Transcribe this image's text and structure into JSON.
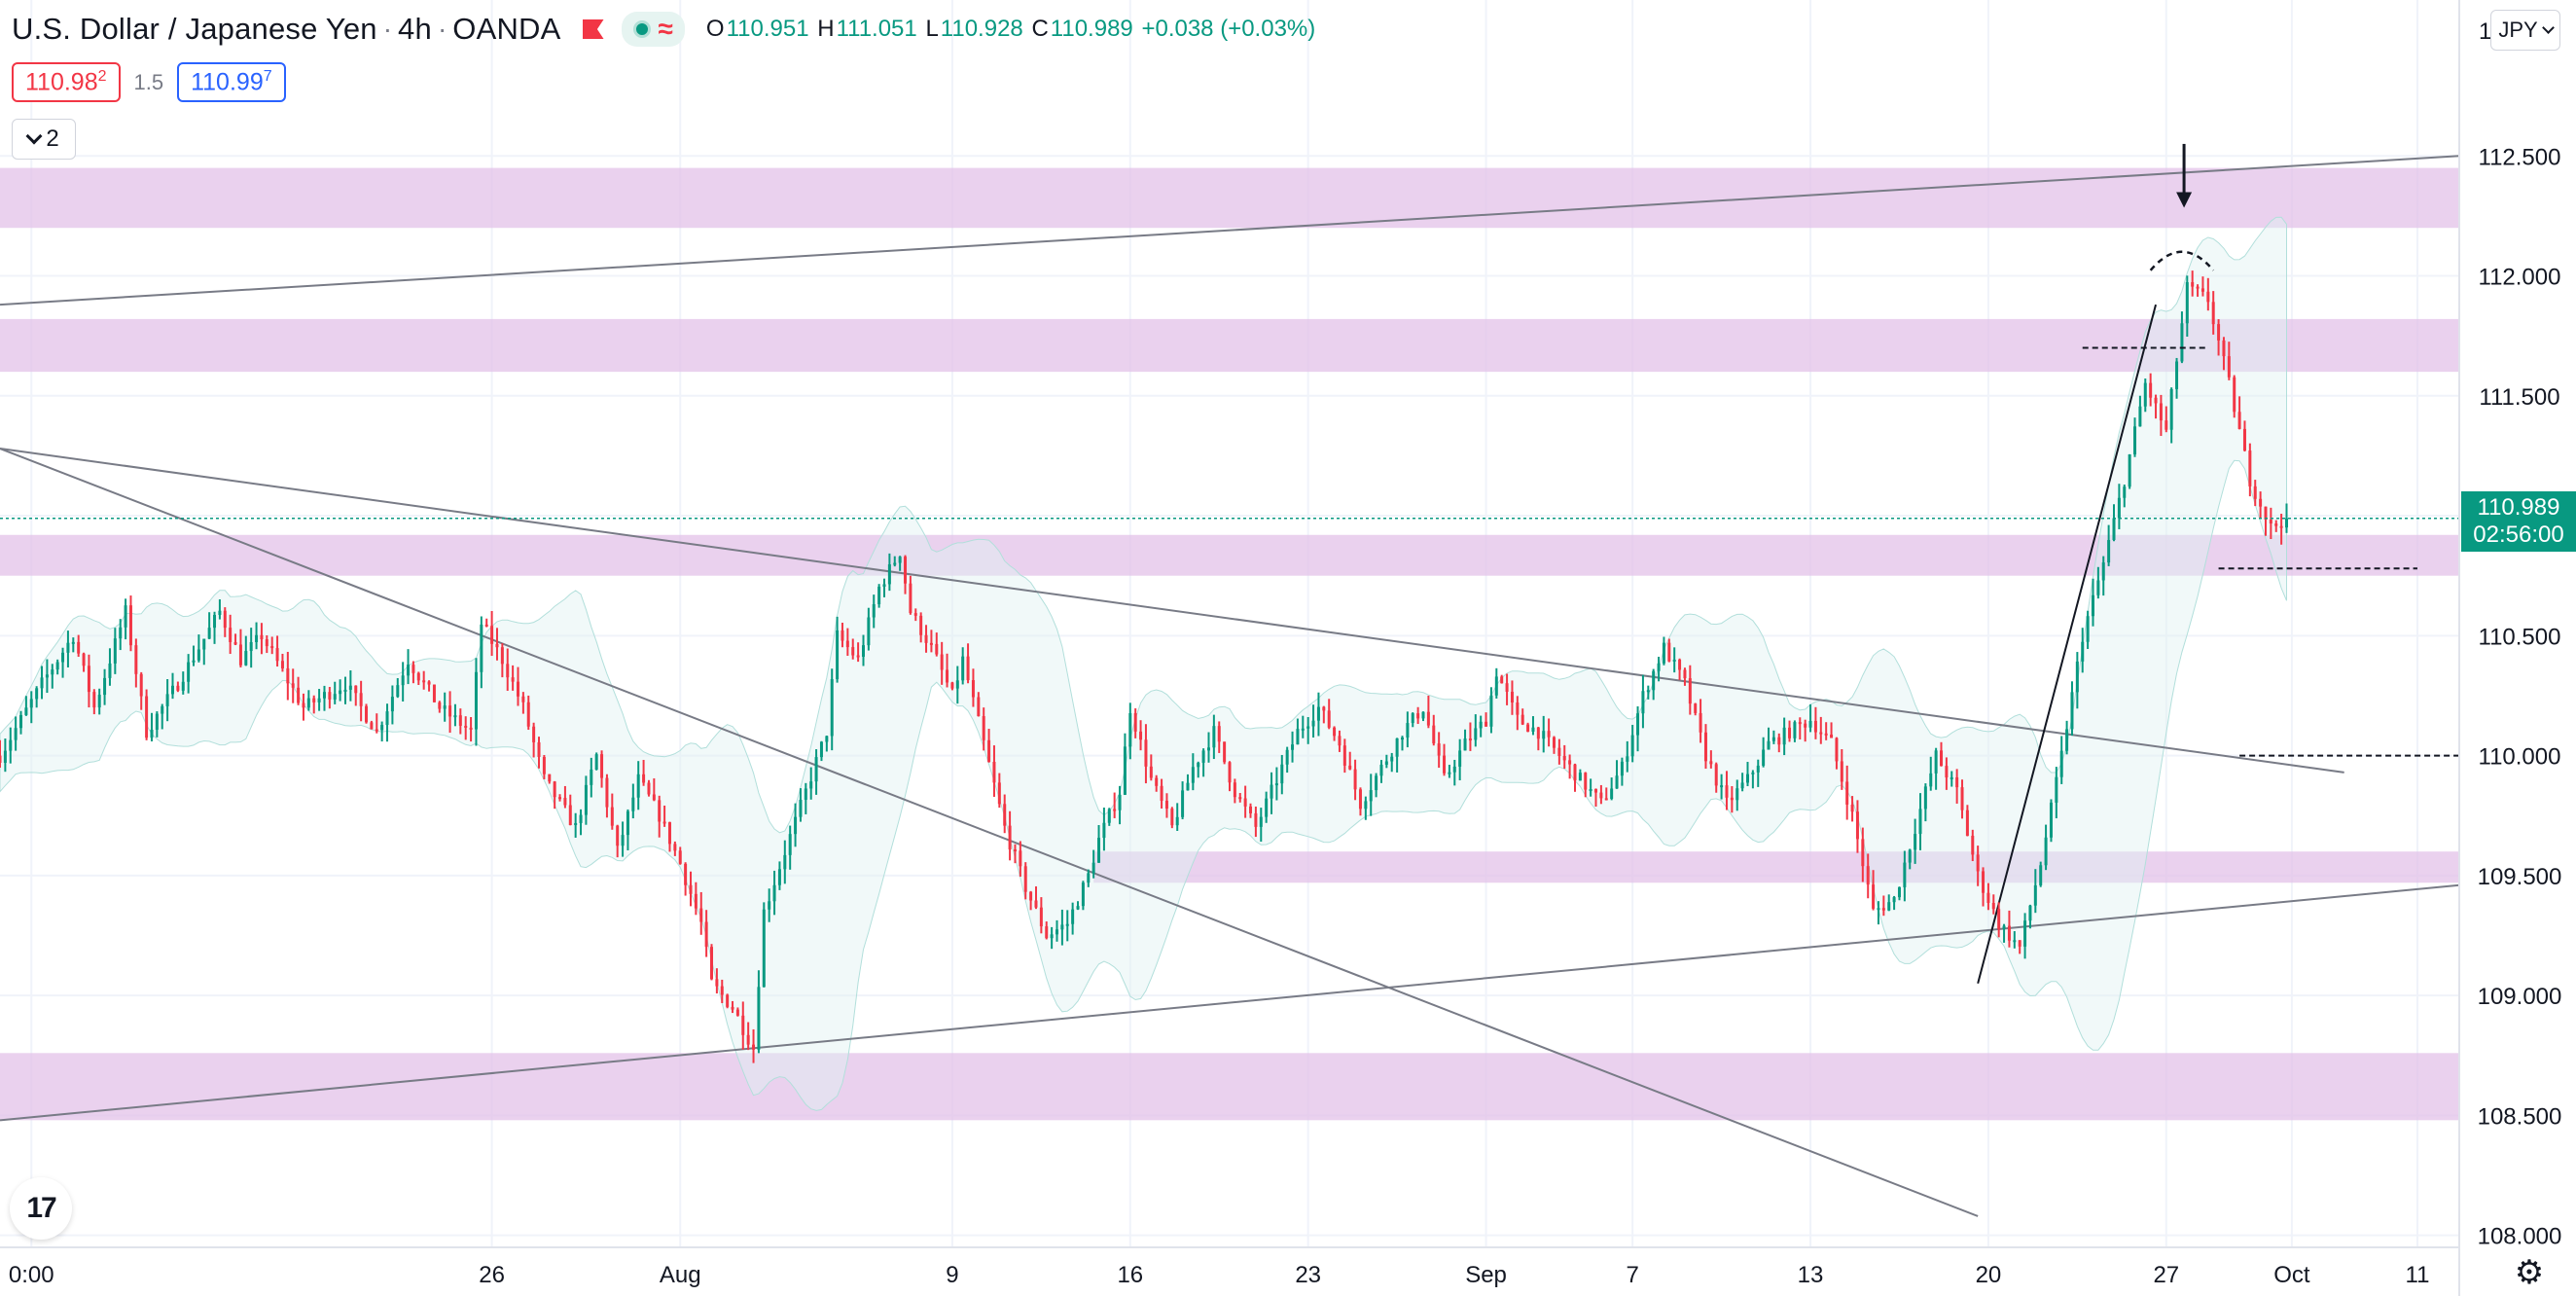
{
  "header": {
    "symbol": "U.S. Dollar / Japanese Yen",
    "interval": "4h",
    "exchange": "OANDA",
    "open_label": "O",
    "open": "110.951",
    "high_label": "H",
    "high": "111.051",
    "low_label": "L",
    "low": "110.928",
    "close_label": "C",
    "close": "110.989",
    "change": "+0.038 (+0.03%)",
    "bid_main": "110.98",
    "bid_pip": "2",
    "spread": "1.5",
    "ask_main": "110.99",
    "ask_pip": "7",
    "collapse_count": "2",
    "currency": "JPY"
  },
  "last_price": {
    "price": "110.989",
    "countdown": "02:56:00"
  },
  "icons": {
    "flag": "flag-icon",
    "indicator": "indicator-status-icon",
    "logo": "tradingview-logo-icon",
    "settings": "gear-icon"
  },
  "colors": {
    "up": "#089981",
    "down": "#f23645",
    "zone": "#e1bee7",
    "band": "#e0f2f1",
    "trendline": "#787b86"
  },
  "chart_data": {
    "type": "candlestick",
    "ylim": [
      107.95,
      113.15
    ],
    "y_ticks": [
      "112.500",
      "112.000",
      "111.500",
      "111.000",
      "110.500",
      "110.000",
      "109.500",
      "109.000",
      "108.500",
      "108.000"
    ],
    "y_top_partial": "1",
    "x_ticks": [
      "0:00",
      "26",
      "Aug",
      "9",
      "16",
      "23",
      "Sep",
      "7",
      "13",
      "20",
      "27",
      "Oct",
      "11"
    ],
    "x_tick_positions": [
      -18,
      26,
      44,
      70,
      87,
      104,
      121,
      135,
      152,
      169,
      186,
      198,
      210
    ],
    "x_range": [
      -21,
      214
    ],
    "zones": [
      [
        112.2,
        112.45
      ],
      [
        111.6,
        111.82
      ],
      [
        110.75,
        110.92
      ],
      [
        109.47,
        109.6
      ],
      [
        108.48,
        108.76
      ]
    ],
    "trendlines": [
      {
        "x": [
          -21,
          214
        ],
        "y": [
          111.88,
          112.5
        ]
      },
      {
        "x": [
          -21,
          168
        ],
        "y": [
          111.28,
          108.08
        ]
      },
      {
        "x": [
          -21,
          214
        ],
        "y": [
          108.48,
          109.46
        ]
      },
      {
        "x": [
          -21,
          203
        ],
        "y": [
          111.28,
          109.93
        ]
      },
      {
        "x": [
          168,
          185
        ],
        "y": [
          109.05,
          111.88
        ]
      }
    ],
    "key_levels": [
      {
        "x": [
          178,
          190
        ],
        "y": 111.7
      },
      {
        "x": [
          191,
          210
        ],
        "y": 110.78
      },
      {
        "x": [
          193,
          214
        ],
        "y": 110.0
      }
    ],
    "arrow": {
      "x": 187.7,
      "y_from": 112.55,
      "y_to": 112.3
    },
    "pivots": [
      [
        -21,
        110.0
      ],
      [
        -17,
        110.3
      ],
      [
        -14,
        110.5
      ],
      [
        -12,
        110.2
      ],
      [
        -9,
        110.6
      ],
      [
        -7,
        110.1
      ],
      [
        -4,
        110.3
      ],
      [
        -2,
        110.45
      ],
      [
        0,
        110.6
      ],
      [
        2,
        110.4
      ],
      [
        4,
        110.5
      ],
      [
        8,
        110.2
      ],
      [
        12,
        110.3
      ],
      [
        15,
        110.1
      ],
      [
        18,
        110.4
      ],
      [
        21,
        110.2
      ],
      [
        24,
        110.1
      ],
      [
        25,
        110.55
      ],
      [
        27,
        110.4
      ],
      [
        29,
        110.2
      ],
      [
        31,
        109.9
      ],
      [
        34,
        109.7
      ],
      [
        36,
        110.0
      ],
      [
        38,
        109.6
      ],
      [
        40,
        109.9
      ],
      [
        42,
        109.75
      ],
      [
        44,
        109.55
      ],
      [
        46,
        109.3
      ],
      [
        47,
        109.05
      ],
      [
        49,
        108.95
      ],
      [
        51,
        108.78
      ],
      [
        52,
        109.35
      ],
      [
        54,
        109.6
      ],
      [
        56,
        109.85
      ],
      [
        58,
        110.1
      ],
      [
        59,
        110.5
      ],
      [
        61,
        110.4
      ],
      [
        63,
        110.7
      ],
      [
        65,
        110.85
      ],
      [
        66,
        110.6
      ],
      [
        68,
        110.45
      ],
      [
        70,
        110.25
      ],
      [
        71,
        110.4
      ],
      [
        73,
        110.05
      ],
      [
        75,
        109.7
      ],
      [
        77,
        109.45
      ],
      [
        79,
        109.25
      ],
      [
        81,
        109.3
      ],
      [
        83,
        109.5
      ],
      [
        84,
        109.65
      ],
      [
        86,
        109.85
      ],
      [
        87,
        110.2
      ],
      [
        89,
        109.9
      ],
      [
        91,
        109.7
      ],
      [
        93,
        109.95
      ],
      [
        95,
        110.1
      ],
      [
        97,
        109.85
      ],
      [
        99,
        109.7
      ],
      [
        101,
        109.9
      ],
      [
        103,
        110.1
      ],
      [
        105,
        110.2
      ],
      [
        107,
        110.05
      ],
      [
        109,
        109.8
      ],
      [
        111,
        109.95
      ],
      [
        113,
        110.1
      ],
      [
        115,
        110.2
      ],
      [
        117,
        109.9
      ],
      [
        119,
        110.05
      ],
      [
        121,
        110.15
      ],
      [
        122,
        110.35
      ],
      [
        124,
        110.15
      ],
      [
        126,
        110.1
      ],
      [
        128,
        110.0
      ],
      [
        130,
        109.9
      ],
      [
        132,
        109.8
      ],
      [
        134,
        109.95
      ],
      [
        136,
        110.25
      ],
      [
        138,
        110.45
      ],
      [
        140,
        110.3
      ],
      [
        142,
        110.0
      ],
      [
        144,
        109.8
      ],
      [
        146,
        109.9
      ],
      [
        148,
        110.05
      ],
      [
        150,
        110.1
      ],
      [
        152,
        110.15
      ],
      [
        154,
        110.05
      ],
      [
        156,
        109.75
      ],
      [
        158,
        109.35
      ],
      [
        160,
        109.4
      ],
      [
        162,
        109.7
      ],
      [
        164,
        110.0
      ],
      [
        166,
        109.85
      ],
      [
        168,
        109.5
      ],
      [
        170,
        109.3
      ],
      [
        172,
        109.2
      ],
      [
        174,
        109.55
      ],
      [
        176,
        110.0
      ],
      [
        178,
        110.5
      ],
      [
        180,
        110.8
      ],
      [
        182,
        111.15
      ],
      [
        184,
        111.55
      ],
      [
        186,
        111.35
      ],
      [
        188,
        111.95
      ],
      [
        190,
        111.9
      ],
      [
        192,
        111.55
      ],
      [
        194,
        111.15
      ],
      [
        196,
        110.95
      ],
      [
        197.5,
        110.99
      ]
    ]
  }
}
